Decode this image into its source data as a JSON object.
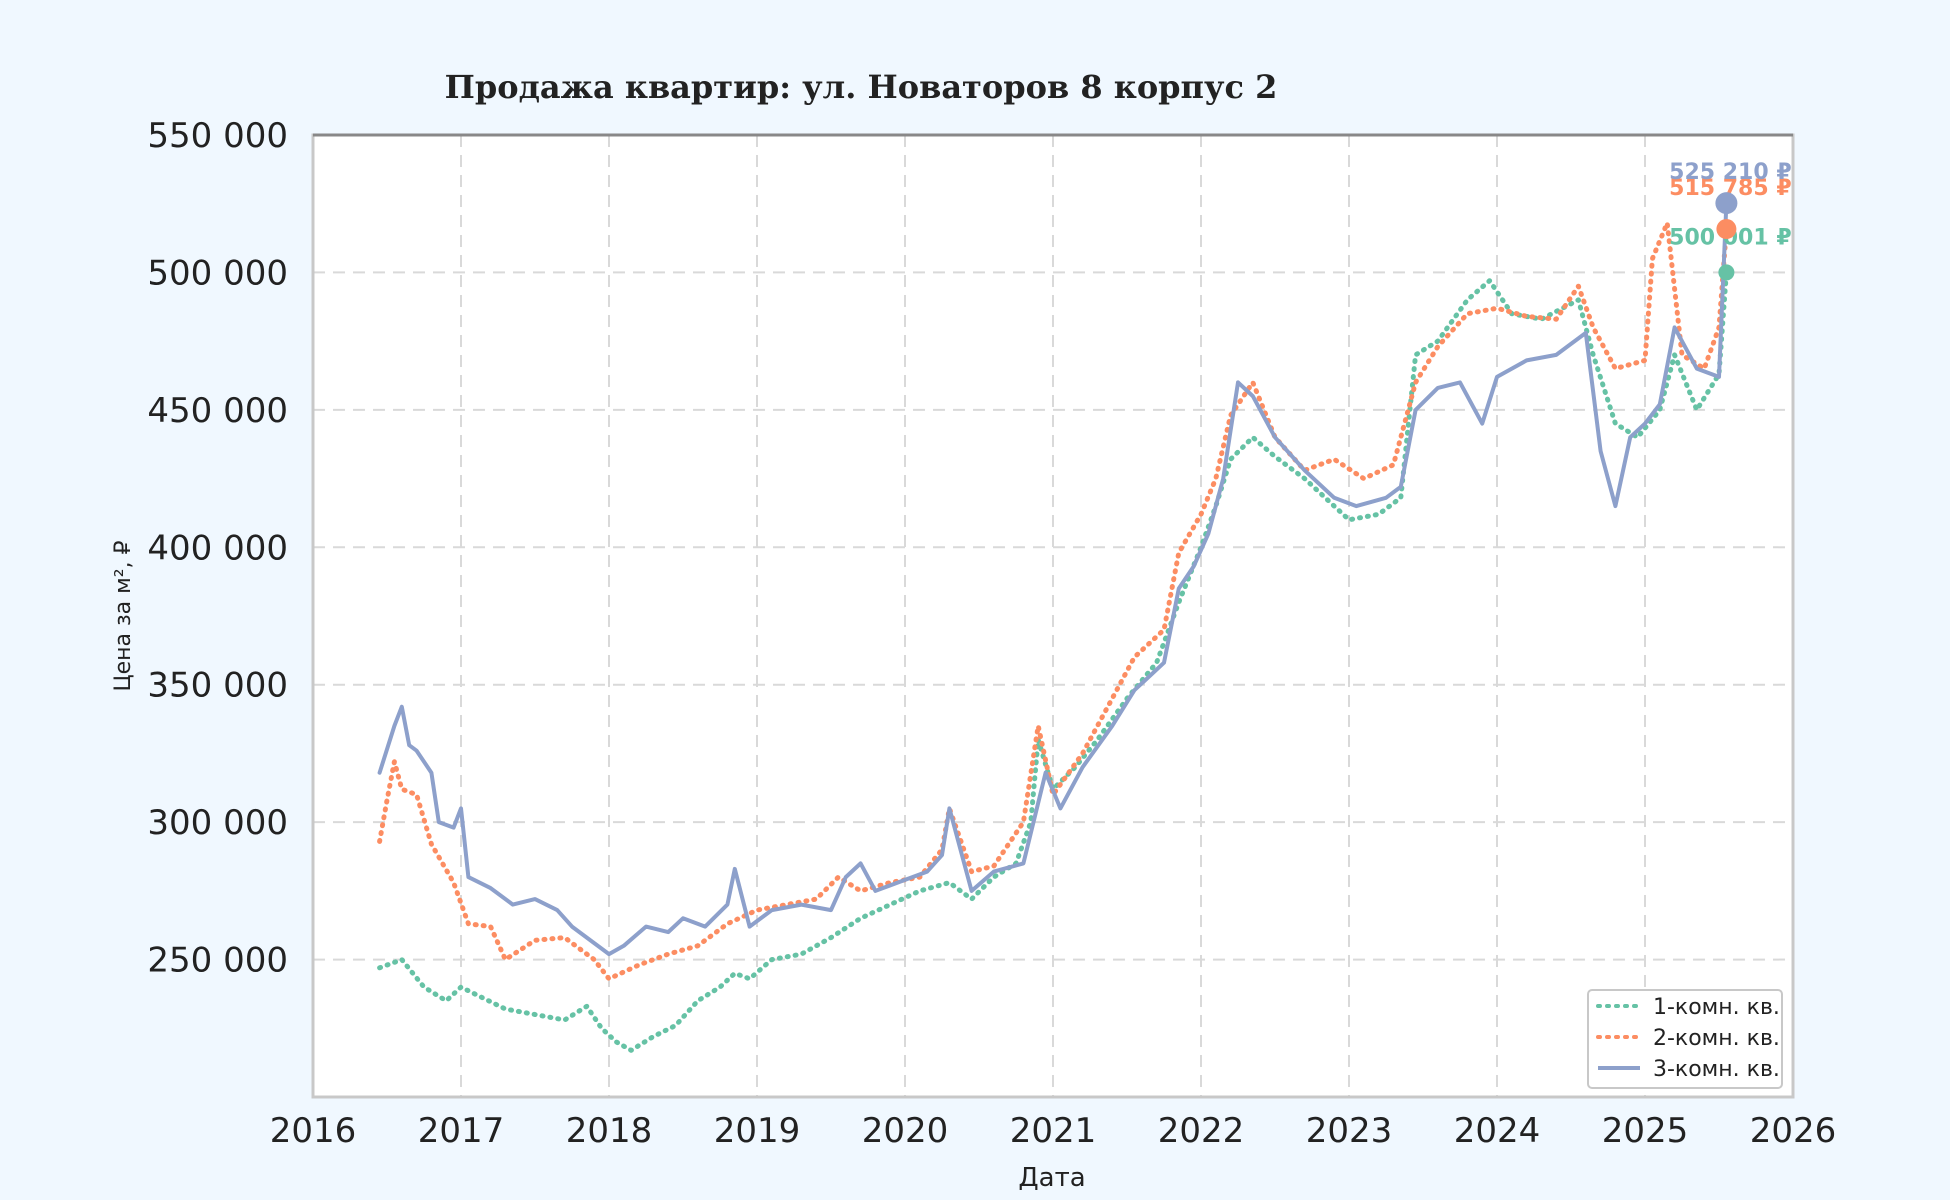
{
  "chart_data": {
    "type": "line",
    "title": "Продажа квартир: ул. Новаторов 8 корпус 2",
    "xlabel": "Дата",
    "ylabel": "Цена за м², ₽",
    "xlim": [
      2016,
      2026
    ],
    "ylim": [
      200000,
      550000
    ],
    "x_ticks": [
      "2016",
      "2017",
      "2018",
      "2019",
      "2020",
      "2021",
      "2022",
      "2023",
      "2024",
      "2025",
      "2026"
    ],
    "y_ticks": [
      "250 000",
      "300 000",
      "350 000",
      "400 000",
      "450 000",
      "500 000",
      "550 000"
    ],
    "grid": true,
    "legend_position": "bottom-right",
    "series": [
      {
        "name": "1-комн. кв.",
        "color": "#66c2a5",
        "style": "dotted-triangles",
        "end_label": "500 001 ₽",
        "end_value": 500001,
        "points": [
          [
            2016.45,
            247000
          ],
          [
            2016.6,
            250000
          ],
          [
            2016.75,
            240000
          ],
          [
            2016.9,
            235000
          ],
          [
            2017.0,
            240000
          ],
          [
            2017.15,
            236000
          ],
          [
            2017.3,
            232000
          ],
          [
            2017.5,
            230000
          ],
          [
            2017.7,
            228000
          ],
          [
            2017.85,
            233000
          ],
          [
            2017.95,
            225000
          ],
          [
            2018.05,
            220000
          ],
          [
            2018.15,
            217000
          ],
          [
            2018.3,
            222000
          ],
          [
            2018.45,
            226000
          ],
          [
            2018.6,
            235000
          ],
          [
            2018.75,
            240000
          ],
          [
            2018.85,
            245000
          ],
          [
            2018.95,
            243000
          ],
          [
            2019.1,
            250000
          ],
          [
            2019.3,
            252000
          ],
          [
            2019.5,
            258000
          ],
          [
            2019.7,
            265000
          ],
          [
            2019.9,
            270000
          ],
          [
            2020.1,
            275000
          ],
          [
            2020.3,
            278000
          ],
          [
            2020.45,
            272000
          ],
          [
            2020.6,
            280000
          ],
          [
            2020.75,
            285000
          ],
          [
            2020.85,
            300000
          ],
          [
            2020.9,
            330000
          ],
          [
            2021.0,
            312000
          ],
          [
            2021.15,
            320000
          ],
          [
            2021.3,
            330000
          ],
          [
            2021.5,
            345000
          ],
          [
            2021.7,
            358000
          ],
          [
            2021.85,
            380000
          ],
          [
            2022.0,
            400000
          ],
          [
            2022.1,
            415000
          ],
          [
            2022.2,
            432000
          ],
          [
            2022.35,
            440000
          ],
          [
            2022.5,
            433000
          ],
          [
            2022.7,
            425000
          ],
          [
            2022.9,
            415000
          ],
          [
            2023.0,
            410000
          ],
          [
            2023.2,
            412000
          ],
          [
            2023.35,
            418000
          ],
          [
            2023.45,
            470000
          ],
          [
            2023.6,
            475000
          ],
          [
            2023.8,
            490000
          ],
          [
            2023.95,
            497000
          ],
          [
            2024.1,
            485000
          ],
          [
            2024.3,
            483000
          ],
          [
            2024.55,
            490000
          ],
          [
            2024.65,
            470000
          ],
          [
            2024.8,
            445000
          ],
          [
            2024.95,
            440000
          ],
          [
            2025.1,
            450000
          ],
          [
            2025.2,
            470000
          ],
          [
            2025.35,
            450000
          ],
          [
            2025.5,
            463000
          ],
          [
            2025.55,
            500001
          ]
        ]
      },
      {
        "name": "2-комн. кв.",
        "color": "#fc8d62",
        "style": "dotted",
        "end_label": "515 785 ₽",
        "end_value": 515785,
        "points": [
          [
            2016.45,
            293000
          ],
          [
            2016.5,
            308000
          ],
          [
            2016.55,
            322000
          ],
          [
            2016.6,
            312000
          ],
          [
            2016.7,
            310000
          ],
          [
            2016.8,
            292000
          ],
          [
            2016.95,
            278000
          ],
          [
            2017.05,
            263000
          ],
          [
            2017.2,
            262000
          ],
          [
            2017.3,
            250000
          ],
          [
            2017.5,
            257000
          ],
          [
            2017.7,
            258000
          ],
          [
            2017.9,
            250000
          ],
          [
            2018.0,
            243000
          ],
          [
            2018.2,
            248000
          ],
          [
            2018.4,
            252000
          ],
          [
            2018.6,
            255000
          ],
          [
            2018.8,
            263000
          ],
          [
            2019.0,
            268000
          ],
          [
            2019.2,
            270000
          ],
          [
            2019.4,
            272000
          ],
          [
            2019.55,
            280000
          ],
          [
            2019.7,
            275000
          ],
          [
            2019.9,
            278000
          ],
          [
            2020.1,
            280000
          ],
          [
            2020.25,
            290000
          ],
          [
            2020.3,
            305000
          ],
          [
            2020.45,
            282000
          ],
          [
            2020.6,
            284000
          ],
          [
            2020.8,
            300000
          ],
          [
            2020.9,
            335000
          ],
          [
            2021.0,
            310000
          ],
          [
            2021.2,
            325000
          ],
          [
            2021.4,
            345000
          ],
          [
            2021.55,
            360000
          ],
          [
            2021.75,
            370000
          ],
          [
            2021.85,
            398000
          ],
          [
            2022.0,
            412000
          ],
          [
            2022.1,
            425000
          ],
          [
            2022.2,
            448000
          ],
          [
            2022.35,
            460000
          ],
          [
            2022.5,
            440000
          ],
          [
            2022.7,
            428000
          ],
          [
            2022.9,
            432000
          ],
          [
            2023.1,
            425000
          ],
          [
            2023.3,
            430000
          ],
          [
            2023.45,
            460000
          ],
          [
            2023.6,
            473000
          ],
          [
            2023.8,
            485000
          ],
          [
            2024.0,
            487000
          ],
          [
            2024.2,
            484000
          ],
          [
            2024.4,
            483000
          ],
          [
            2024.55,
            495000
          ],
          [
            2024.65,
            480000
          ],
          [
            2024.8,
            465000
          ],
          [
            2025.0,
            468000
          ],
          [
            2025.05,
            505000
          ],
          [
            2025.15,
            518000
          ],
          [
            2025.25,
            470000
          ],
          [
            2025.4,
            465000
          ],
          [
            2025.5,
            480000
          ],
          [
            2025.55,
            515785
          ]
        ]
      },
      {
        "name": "3-комн. кв.",
        "color": "#8da0cb",
        "style": "solid",
        "end_label": "525 210 ₽",
        "end_value": 525210,
        "points": [
          [
            2016.45,
            318000
          ],
          [
            2016.55,
            335000
          ],
          [
            2016.6,
            342000
          ],
          [
            2016.65,
            328000
          ],
          [
            2016.7,
            326000
          ],
          [
            2016.8,
            318000
          ],
          [
            2016.85,
            300000
          ],
          [
            2016.95,
            298000
          ],
          [
            2017.0,
            305000
          ],
          [
            2017.05,
            280000
          ],
          [
            2017.2,
            276000
          ],
          [
            2017.35,
            270000
          ],
          [
            2017.5,
            272000
          ],
          [
            2017.65,
            268000
          ],
          [
            2017.75,
            262000
          ],
          [
            2017.85,
            258000
          ],
          [
            2018.0,
            252000
          ],
          [
            2018.1,
            255000
          ],
          [
            2018.25,
            262000
          ],
          [
            2018.4,
            260000
          ],
          [
            2018.5,
            265000
          ],
          [
            2018.65,
            262000
          ],
          [
            2018.8,
            270000
          ],
          [
            2018.85,
            283000
          ],
          [
            2018.95,
            262000
          ],
          [
            2019.1,
            268000
          ],
          [
            2019.3,
            270000
          ],
          [
            2019.5,
            268000
          ],
          [
            2019.6,
            280000
          ],
          [
            2019.7,
            285000
          ],
          [
            2019.8,
            275000
          ],
          [
            2019.95,
            278000
          ],
          [
            2020.15,
            282000
          ],
          [
            2020.25,
            288000
          ],
          [
            2020.3,
            305000
          ],
          [
            2020.45,
            275000
          ],
          [
            2020.6,
            282000
          ],
          [
            2020.8,
            285000
          ],
          [
            2020.95,
            318000
          ],
          [
            2021.05,
            305000
          ],
          [
            2021.2,
            320000
          ],
          [
            2021.4,
            335000
          ],
          [
            2021.55,
            348000
          ],
          [
            2021.75,
            358000
          ],
          [
            2021.85,
            385000
          ],
          [
            2021.95,
            393000
          ],
          [
            2022.05,
            405000
          ],
          [
            2022.15,
            425000
          ],
          [
            2022.25,
            460000
          ],
          [
            2022.35,
            455000
          ],
          [
            2022.5,
            440000
          ],
          [
            2022.7,
            428000
          ],
          [
            2022.9,
            418000
          ],
          [
            2023.05,
            415000
          ],
          [
            2023.25,
            418000
          ],
          [
            2023.35,
            422000
          ],
          [
            2023.45,
            450000
          ],
          [
            2023.6,
            458000
          ],
          [
            2023.75,
            460000
          ],
          [
            2023.9,
            445000
          ],
          [
            2024.0,
            462000
          ],
          [
            2024.2,
            468000
          ],
          [
            2024.4,
            470000
          ],
          [
            2024.6,
            478000
          ],
          [
            2024.7,
            435000
          ],
          [
            2024.8,
            415000
          ],
          [
            2024.9,
            440000
          ],
          [
            2025.0,
            445000
          ],
          [
            2025.1,
            452000
          ],
          [
            2025.2,
            480000
          ],
          [
            2025.35,
            465000
          ],
          [
            2025.5,
            462000
          ],
          [
            2025.55,
            525210
          ]
        ]
      }
    ]
  }
}
